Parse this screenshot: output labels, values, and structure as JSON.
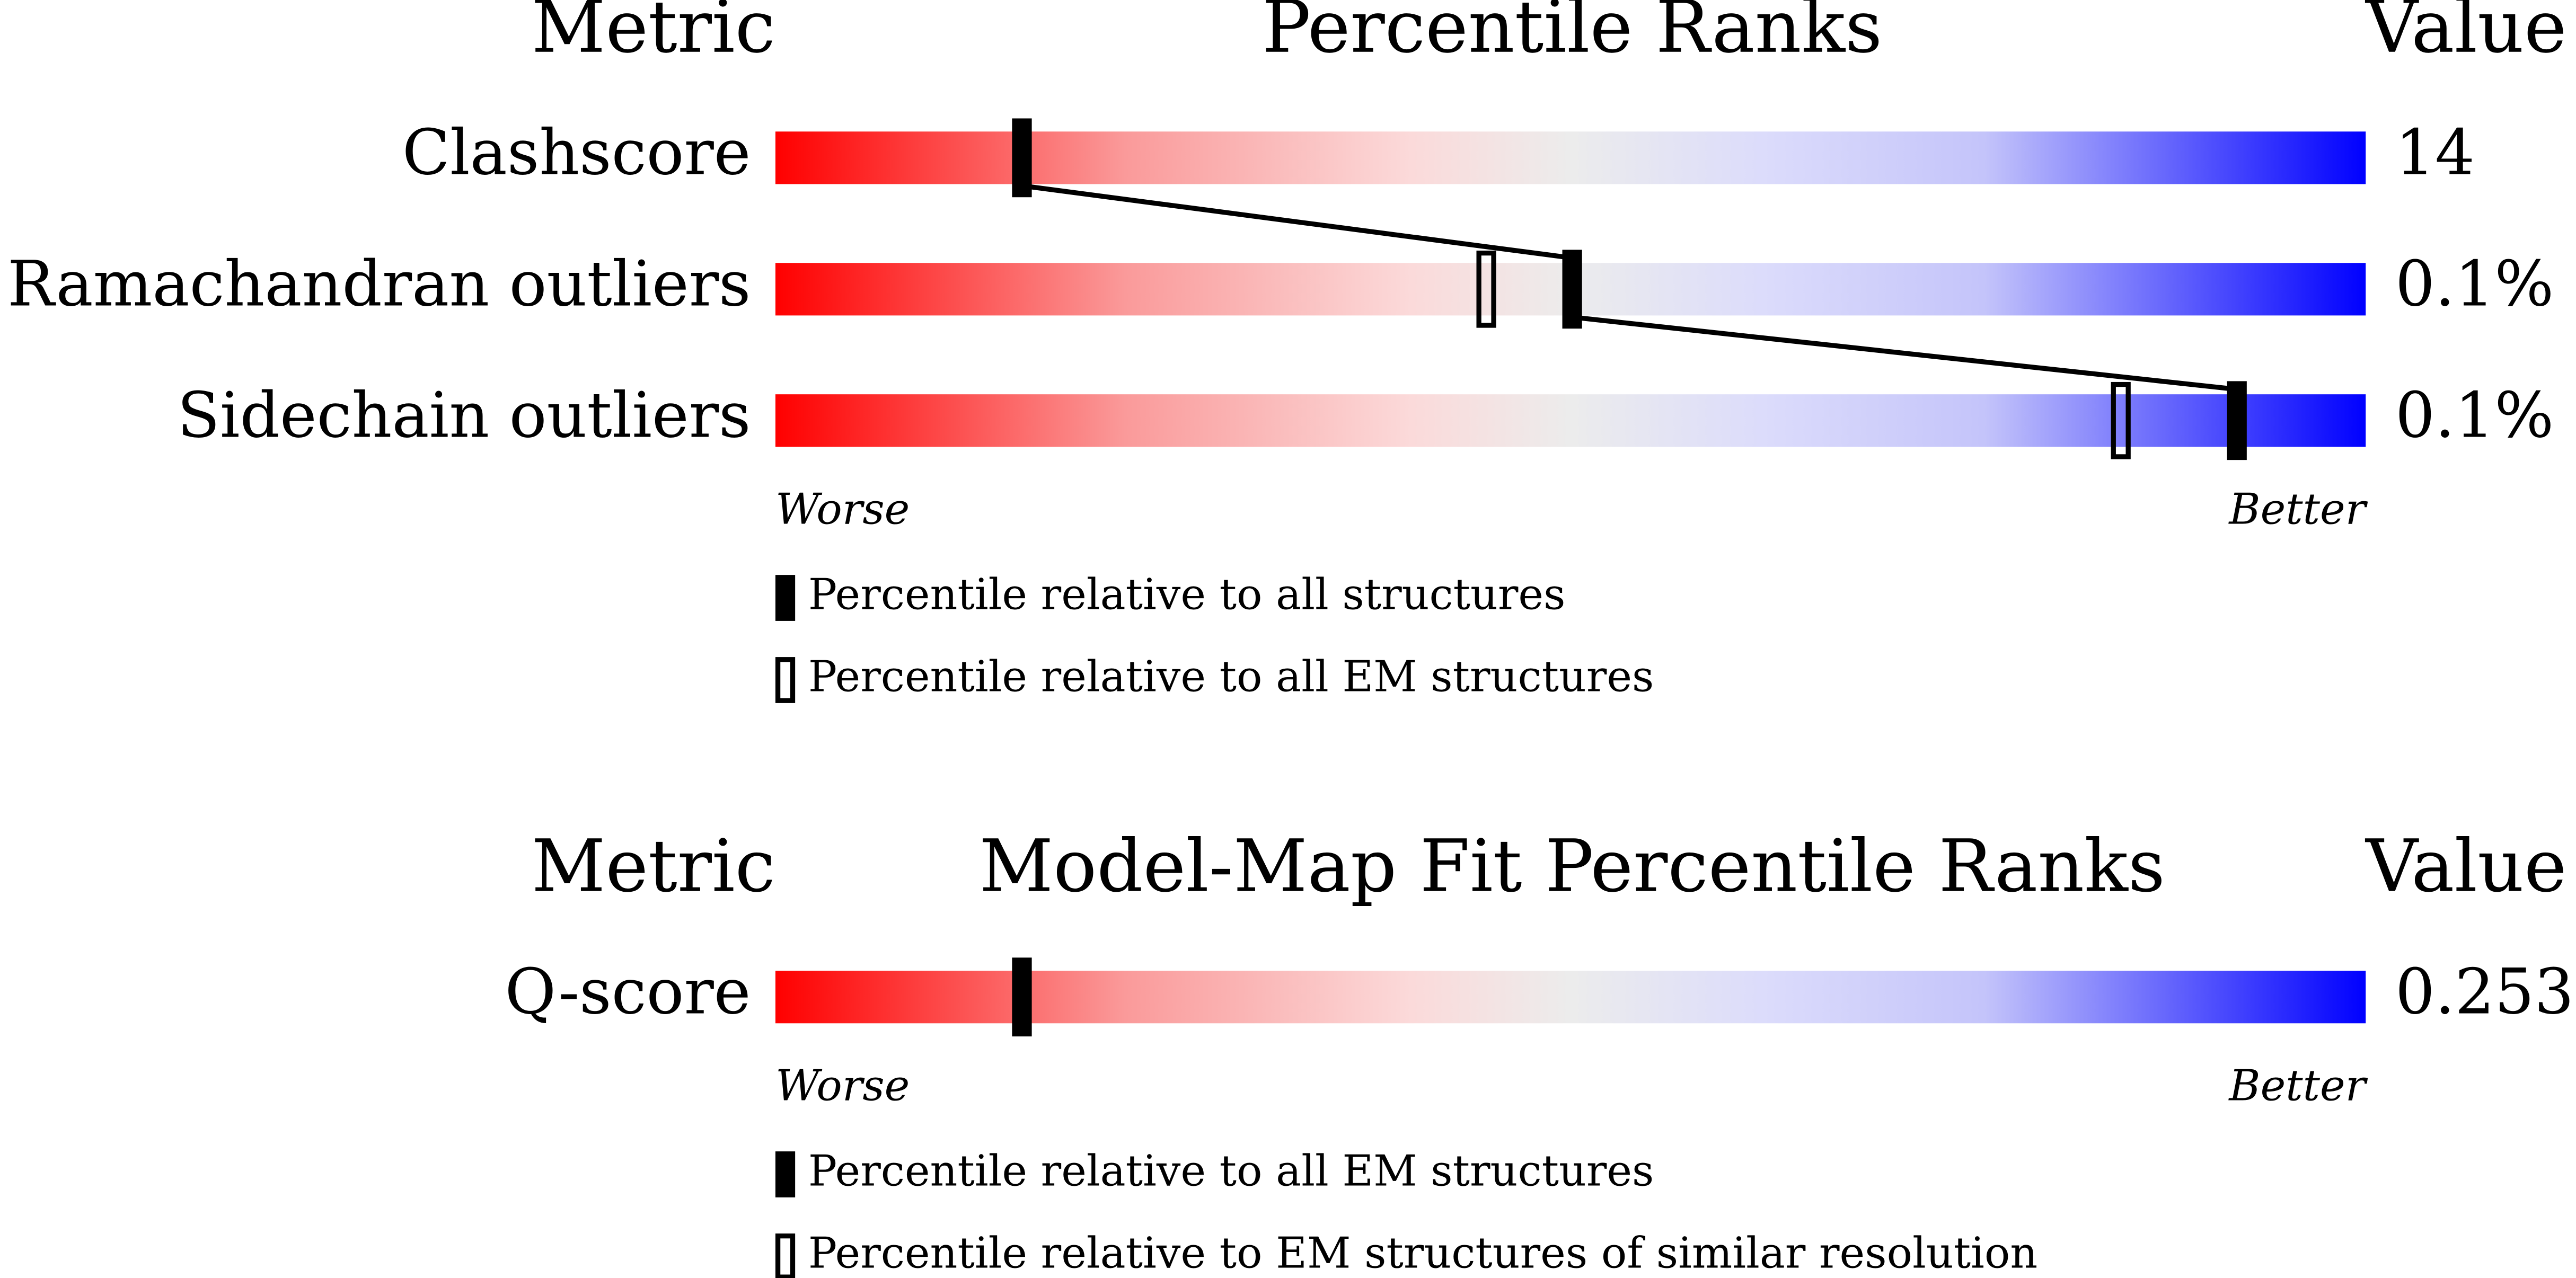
{
  "chart_data": [
    {
      "type": "slider",
      "title": "Percentile Ranks",
      "metric_header": "Metric",
      "value_header": "Value",
      "low_label": "Worse",
      "high_label": "Better",
      "xlim": [
        0,
        100
      ],
      "categories": [
        "Clashscore",
        "Ramachandran outliers",
        "Sidechain outliers"
      ],
      "metric_values": [
        "14",
        "0.1%",
        "0.1%"
      ],
      "series": [
        {
          "name": "Percentile relative to all structures",
          "style": "filled",
          "color": "#000000",
          "values": [
            15.5,
            50.1,
            91.9
          ]
        },
        {
          "name": "Percentile relative to all EM structures",
          "style": "open",
          "color": "#000000",
          "values": [
            null,
            44.7,
            84.6
          ]
        }
      ]
    },
    {
      "type": "slider",
      "title": "Model-Map Fit Percentile Ranks",
      "metric_header": "Metric",
      "value_header": "Value",
      "low_label": "Worse",
      "high_label": "Better",
      "xlim": [
        0,
        100
      ],
      "categories": [
        "Q-score"
      ],
      "metric_values": [
        "0.253"
      ],
      "series": [
        {
          "name": "Percentile relative to all EM structures",
          "style": "filled",
          "color": "#000000",
          "values": [
            15.5
          ]
        },
        {
          "name": "Percentile relative to EM structures of similar resolution",
          "style": "open",
          "color": "#000000",
          "values": [
            null
          ]
        }
      ]
    }
  ]
}
